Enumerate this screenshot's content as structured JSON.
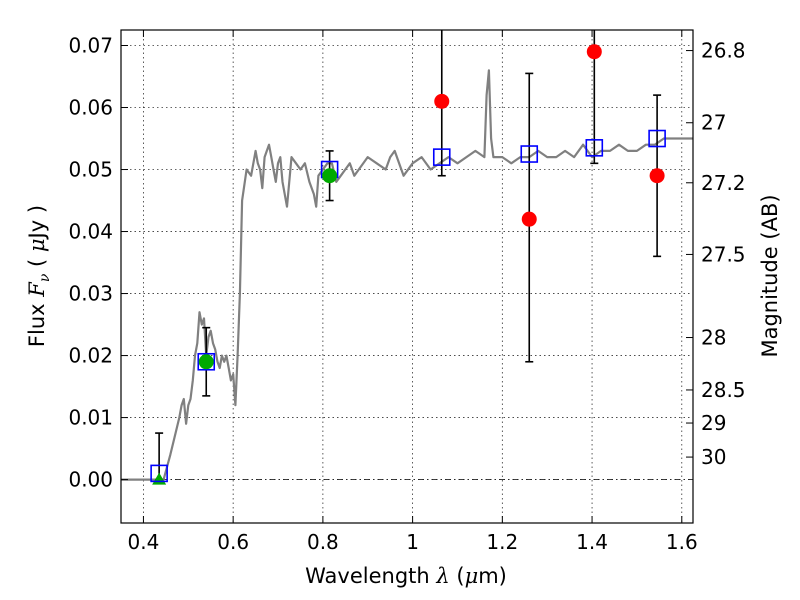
{
  "chart_data": {
    "type": "scatter",
    "title": "",
    "xlabel": {
      "prefix": "Wavelength  ",
      "symbol": "λ",
      "unit_open": " (",
      "unit_mu": "μ",
      "unit_close": "m)"
    },
    "ylabel": {
      "prefix": "Flux  ",
      "symbol": "F",
      "sub": "ν",
      "unit_open": "  ( ",
      "unit_mu": "μ",
      "unit_close": "Jy )"
    },
    "ylabel_right": "Magnitude (AB)",
    "xlim": [
      0.35,
      1.625
    ],
    "ylim": [
      -0.007,
      0.0725
    ],
    "x_ticks": [
      0.4,
      0.6,
      0.8,
      1.0,
      1.2,
      1.4,
      1.6
    ],
    "x_tick_labels": [
      "0.4",
      "0.6",
      "0.8",
      "1",
      "1.2",
      "1.4",
      "1.6"
    ],
    "y_ticks": [
      0.0,
      0.01,
      0.02,
      0.03,
      0.04,
      0.05,
      0.06,
      0.07
    ],
    "y_tick_labels": [
      "0.00",
      "0.01",
      "0.02",
      "0.03",
      "0.04",
      "0.05",
      "0.06",
      "0.07"
    ],
    "right_ticks": [
      {
        "mag": 26.8,
        "label": "26.8"
      },
      {
        "mag": 27,
        "label": "27"
      },
      {
        "mag": 27.2,
        "label": "27.2"
      },
      {
        "mag": 27.5,
        "label": "27.5"
      },
      {
        "mag": 28,
        "label": "28"
      },
      {
        "mag": 28.5,
        "label": "28.5"
      },
      {
        "mag": 29,
        "label": "29"
      },
      {
        "mag": 30,
        "label": "30"
      }
    ],
    "grid": true,
    "colors": {
      "model": "#808080",
      "model_points": "#0000ff",
      "detected_points": "#ff0000",
      "green_points": "#00aa00",
      "errorbars": "#000000"
    },
    "series": [
      {
        "role": "model_spectrum",
        "style": "line",
        "x": [
          0.35,
          0.43,
          0.445,
          0.46,
          0.47,
          0.48,
          0.485,
          0.49,
          0.495,
          0.5,
          0.505,
          0.51,
          0.515,
          0.52,
          0.525,
          0.53,
          0.535,
          0.54,
          0.545,
          0.55,
          0.555,
          0.56,
          0.565,
          0.57,
          0.575,
          0.58,
          0.585,
          0.59,
          0.595,
          0.6,
          0.605,
          0.61,
          0.615,
          0.62,
          0.63,
          0.64,
          0.65,
          0.655,
          0.66,
          0.665,
          0.67,
          0.675,
          0.68,
          0.685,
          0.69,
          0.695,
          0.7,
          0.705,
          0.71,
          0.72,
          0.73,
          0.74,
          0.75,
          0.76,
          0.77,
          0.78,
          0.785,
          0.79,
          0.8,
          0.81,
          0.82,
          0.83,
          0.84,
          0.85,
          0.86,
          0.87,
          0.88,
          0.9,
          0.92,
          0.94,
          0.95,
          0.96,
          0.97,
          0.98,
          1.0,
          1.02,
          1.04,
          1.06,
          1.08,
          1.1,
          1.12,
          1.14,
          1.16,
          1.165,
          1.17,
          1.175,
          1.18,
          1.2,
          1.22,
          1.24,
          1.26,
          1.28,
          1.3,
          1.32,
          1.34,
          1.36,
          1.38,
          1.4,
          1.42,
          1.44,
          1.46,
          1.48,
          1.5,
          1.52,
          1.54,
          1.56,
          1.58,
          1.6,
          1.625
        ],
        "y": [
          0.0,
          0.0,
          0.0,
          0.004,
          0.007,
          0.01,
          0.012,
          0.013,
          0.009,
          0.012,
          0.013,
          0.016,
          0.02,
          0.022,
          0.027,
          0.025,
          0.026,
          0.02,
          0.023,
          0.024,
          0.022,
          0.021,
          0.019,
          0.018,
          0.02,
          0.019,
          0.02,
          0.018,
          0.016,
          0.017,
          0.012,
          0.02,
          0.03,
          0.045,
          0.05,
          0.049,
          0.053,
          0.051,
          0.05,
          0.047,
          0.052,
          0.053,
          0.054,
          0.052,
          0.05,
          0.048,
          0.051,
          0.052,
          0.048,
          0.044,
          0.052,
          0.051,
          0.05,
          0.051,
          0.048,
          0.046,
          0.044,
          0.049,
          0.05,
          0.051,
          0.051,
          0.048,
          0.049,
          0.05,
          0.051,
          0.049,
          0.05,
          0.052,
          0.051,
          0.05,
          0.052,
          0.053,
          0.051,
          0.049,
          0.051,
          0.052,
          0.05,
          0.051,
          0.052,
          0.051,
          0.052,
          0.053,
          0.052,
          0.062,
          0.066,
          0.055,
          0.052,
          0.052,
          0.051,
          0.052,
          0.052,
          0.053,
          0.052,
          0.052,
          0.053,
          0.052,
          0.054,
          0.052,
          0.053,
          0.053,
          0.054,
          0.053,
          0.053,
          0.054,
          0.054,
          0.055,
          0.055,
          0.055,
          0.055
        ]
      },
      {
        "role": "model_photometry",
        "marker": "square",
        "x": [
          0.435,
          0.54,
          0.815,
          1.065,
          1.26,
          1.405,
          1.545
        ],
        "y": [
          0.001,
          0.019,
          0.05,
          0.052,
          0.0525,
          0.0535,
          0.055
        ]
      },
      {
        "role": "detected_photometry",
        "marker": "circle",
        "color": "red",
        "x": [
          1.065,
          1.26,
          1.405,
          1.545
        ],
        "y": [
          0.061,
          0.042,
          0.069,
          0.049
        ],
        "err_low": [
          0.049,
          0.019,
          0.051,
          0.036
        ],
        "err_high": [
          0.08,
          0.0655,
          0.08,
          0.062
        ]
      },
      {
        "role": "green_photometry",
        "marker": "circle",
        "color": "green",
        "x": [
          0.54,
          0.815
        ],
        "y": [
          0.019,
          0.049
        ],
        "err_low": [
          0.0135,
          0.045
        ],
        "err_high": [
          0.0245,
          0.053
        ]
      },
      {
        "role": "upper_limit",
        "marker": "triangle",
        "color": "green",
        "x": [
          0.435
        ],
        "y": [
          0.0
        ],
        "err_low": [
          0.0
        ],
        "err_high": [
          0.0075
        ]
      }
    ]
  }
}
